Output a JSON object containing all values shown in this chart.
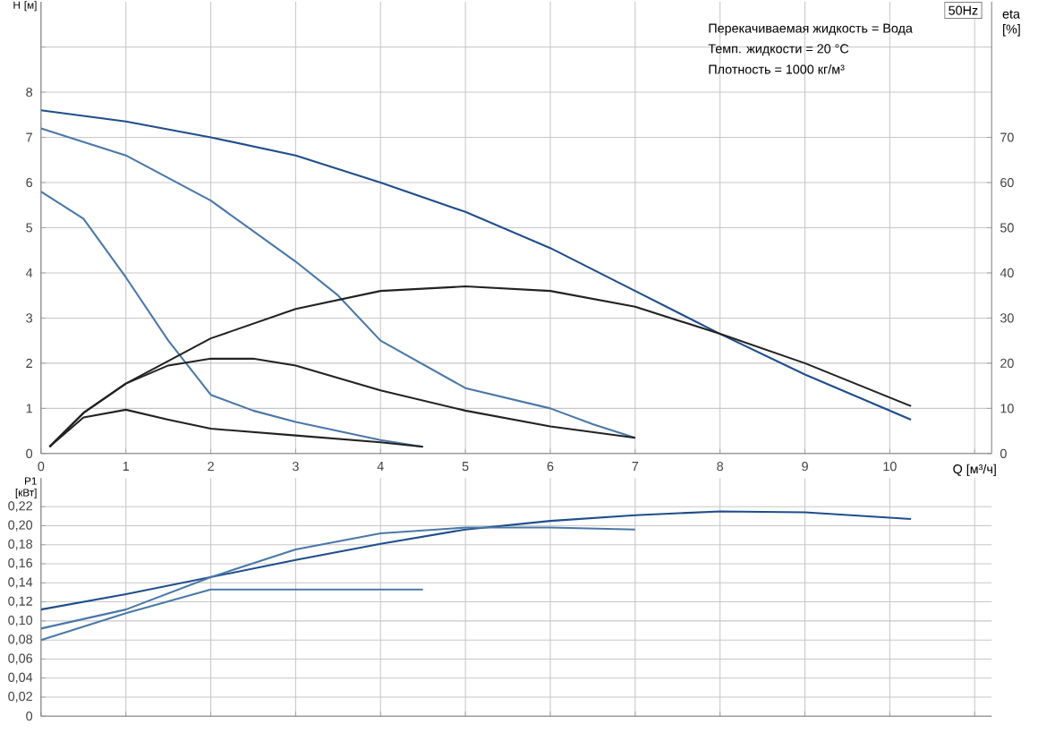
{
  "chart_data": [
    {
      "type": "line",
      "xlabel": "Q [м³/ч]",
      "ylabel": "H [м]",
      "y2label": "eta [%]",
      "xlim": [
        0,
        11.2
      ],
      "xticks": [
        0,
        1,
        2,
        3,
        4,
        5,
        6,
        7,
        8,
        9,
        10,
        {
          "value": 11,
          "label": null
        }
      ],
      "ylim": [
        0,
        10
      ],
      "yticks": [
        0,
        1,
        2,
        3,
        4,
        5,
        6,
        7,
        8,
        {
          "value": 9,
          "label": null
        }
      ],
      "y2lim": [
        0,
        100
      ],
      "y2ticks": [
        0,
        10,
        20,
        30,
        40,
        50,
        60,
        70
      ],
      "grid": true,
      "annotations": [
        "50Hz",
        "Перекачиваемая жидкость = Вода",
        "Темп. жидкости = 20 °C",
        "Плотность = 1000 кг/м³"
      ],
      "series": [
        {
          "color": "#1f4e8c",
          "x": [
            0,
            1,
            2,
            3,
            4,
            5,
            6,
            7,
            8,
            9,
            10.25
          ],
          "values": [
            7.6,
            7.35,
            7.0,
            6.6,
            6.0,
            5.35,
            4.55,
            3.6,
            2.65,
            1.75,
            0.75
          ]
        },
        {
          "color": "#4a78a8",
          "x": [
            0,
            1,
            2,
            3,
            3.5,
            4,
            5,
            6,
            6.5,
            7
          ],
          "values": [
            7.2,
            6.6,
            5.6,
            4.25,
            3.5,
            2.5,
            1.45,
            1.0,
            0.65,
            0.35
          ]
        },
        {
          "color": "#4a78a8",
          "x": [
            0,
            0.5,
            1,
            1.5,
            2,
            2.5,
            3,
            4,
            4.5
          ],
          "values": [
            5.8,
            5.2,
            3.9,
            2.5,
            1.3,
            0.95,
            0.7,
            0.3,
            0.15
          ]
        },
        {
          "color": "#222222",
          "axis": "y2",
          "x": [
            0.1,
            0.5,
            1,
            2,
            3,
            4,
            5,
            6,
            7,
            8,
            9,
            10.25
          ],
          "values": [
            1.5,
            9,
            15.5,
            25.5,
            32,
            36,
            37,
            36,
            32.5,
            26.5,
            20,
            10.5
          ]
        },
        {
          "color": "#222222",
          "axis": "y2",
          "x": [
            0.1,
            0.5,
            1,
            1.5,
            2,
            2.5,
            3,
            4,
            5,
            6,
            7
          ],
          "values": [
            1.5,
            9,
            15.5,
            19.5,
            21,
            21,
            19.5,
            14,
            9.5,
            6,
            3.5
          ]
        },
        {
          "color": "#222222",
          "axis": "y2",
          "x": [
            0.1,
            0.5,
            1,
            1.5,
            2,
            3,
            4,
            4.5
          ],
          "values": [
            1.5,
            8,
            9.7,
            7.5,
            5.5,
            4,
            2.5,
            1.5
          ]
        }
      ]
    },
    {
      "type": "line",
      "ylabel": "P1 [кВт]",
      "xlim": [
        0,
        11.2
      ],
      "xticks": [
        0,
        1,
        2,
        3,
        4,
        5,
        6,
        7,
        8,
        9,
        10,
        11
      ],
      "ylim": [
        0,
        0.25
      ],
      "yticks": [
        0,
        {
          "value": 0.02,
          "label": "0,02"
        },
        {
          "value": 0.04,
          "label": "0,04"
        },
        {
          "value": 0.06,
          "label": "0,06"
        },
        {
          "value": 0.08,
          "label": "0,08"
        },
        {
          "value": 0.1,
          "label": "0,10"
        },
        {
          "value": 0.12,
          "label": "0,12"
        },
        {
          "value": 0.14,
          "label": "0,14"
        },
        {
          "value": 0.16,
          "label": "0,16"
        },
        {
          "value": 0.18,
          "label": "0,18"
        },
        {
          "value": 0.2,
          "label": "0,20"
        },
        {
          "value": 0.22,
          "label": "0,22"
        }
      ],
      "grid": true,
      "tick_labels": "y",
      "series": [
        {
          "color": "#1f4e8c",
          "x": [
            0,
            1,
            2,
            3,
            4,
            5,
            6,
            7,
            8,
            9,
            10.25
          ],
          "values": [
            0.112,
            0.128,
            0.146,
            0.164,
            0.181,
            0.196,
            0.205,
            0.211,
            0.215,
            0.214,
            0.207
          ]
        },
        {
          "color": "#4a78a8",
          "x": [
            0,
            1,
            2,
            3,
            4,
            5,
            6,
            7
          ],
          "values": [
            0.092,
            0.112,
            0.146,
            0.175,
            0.192,
            0.198,
            0.198,
            0.196
          ]
        },
        {
          "color": "#4a78a8",
          "x": [
            0,
            1,
            2,
            3,
            4.5
          ],
          "values": [
            0.08,
            0.108,
            0.133,
            0.133,
            0.133
          ]
        }
      ]
    }
  ]
}
